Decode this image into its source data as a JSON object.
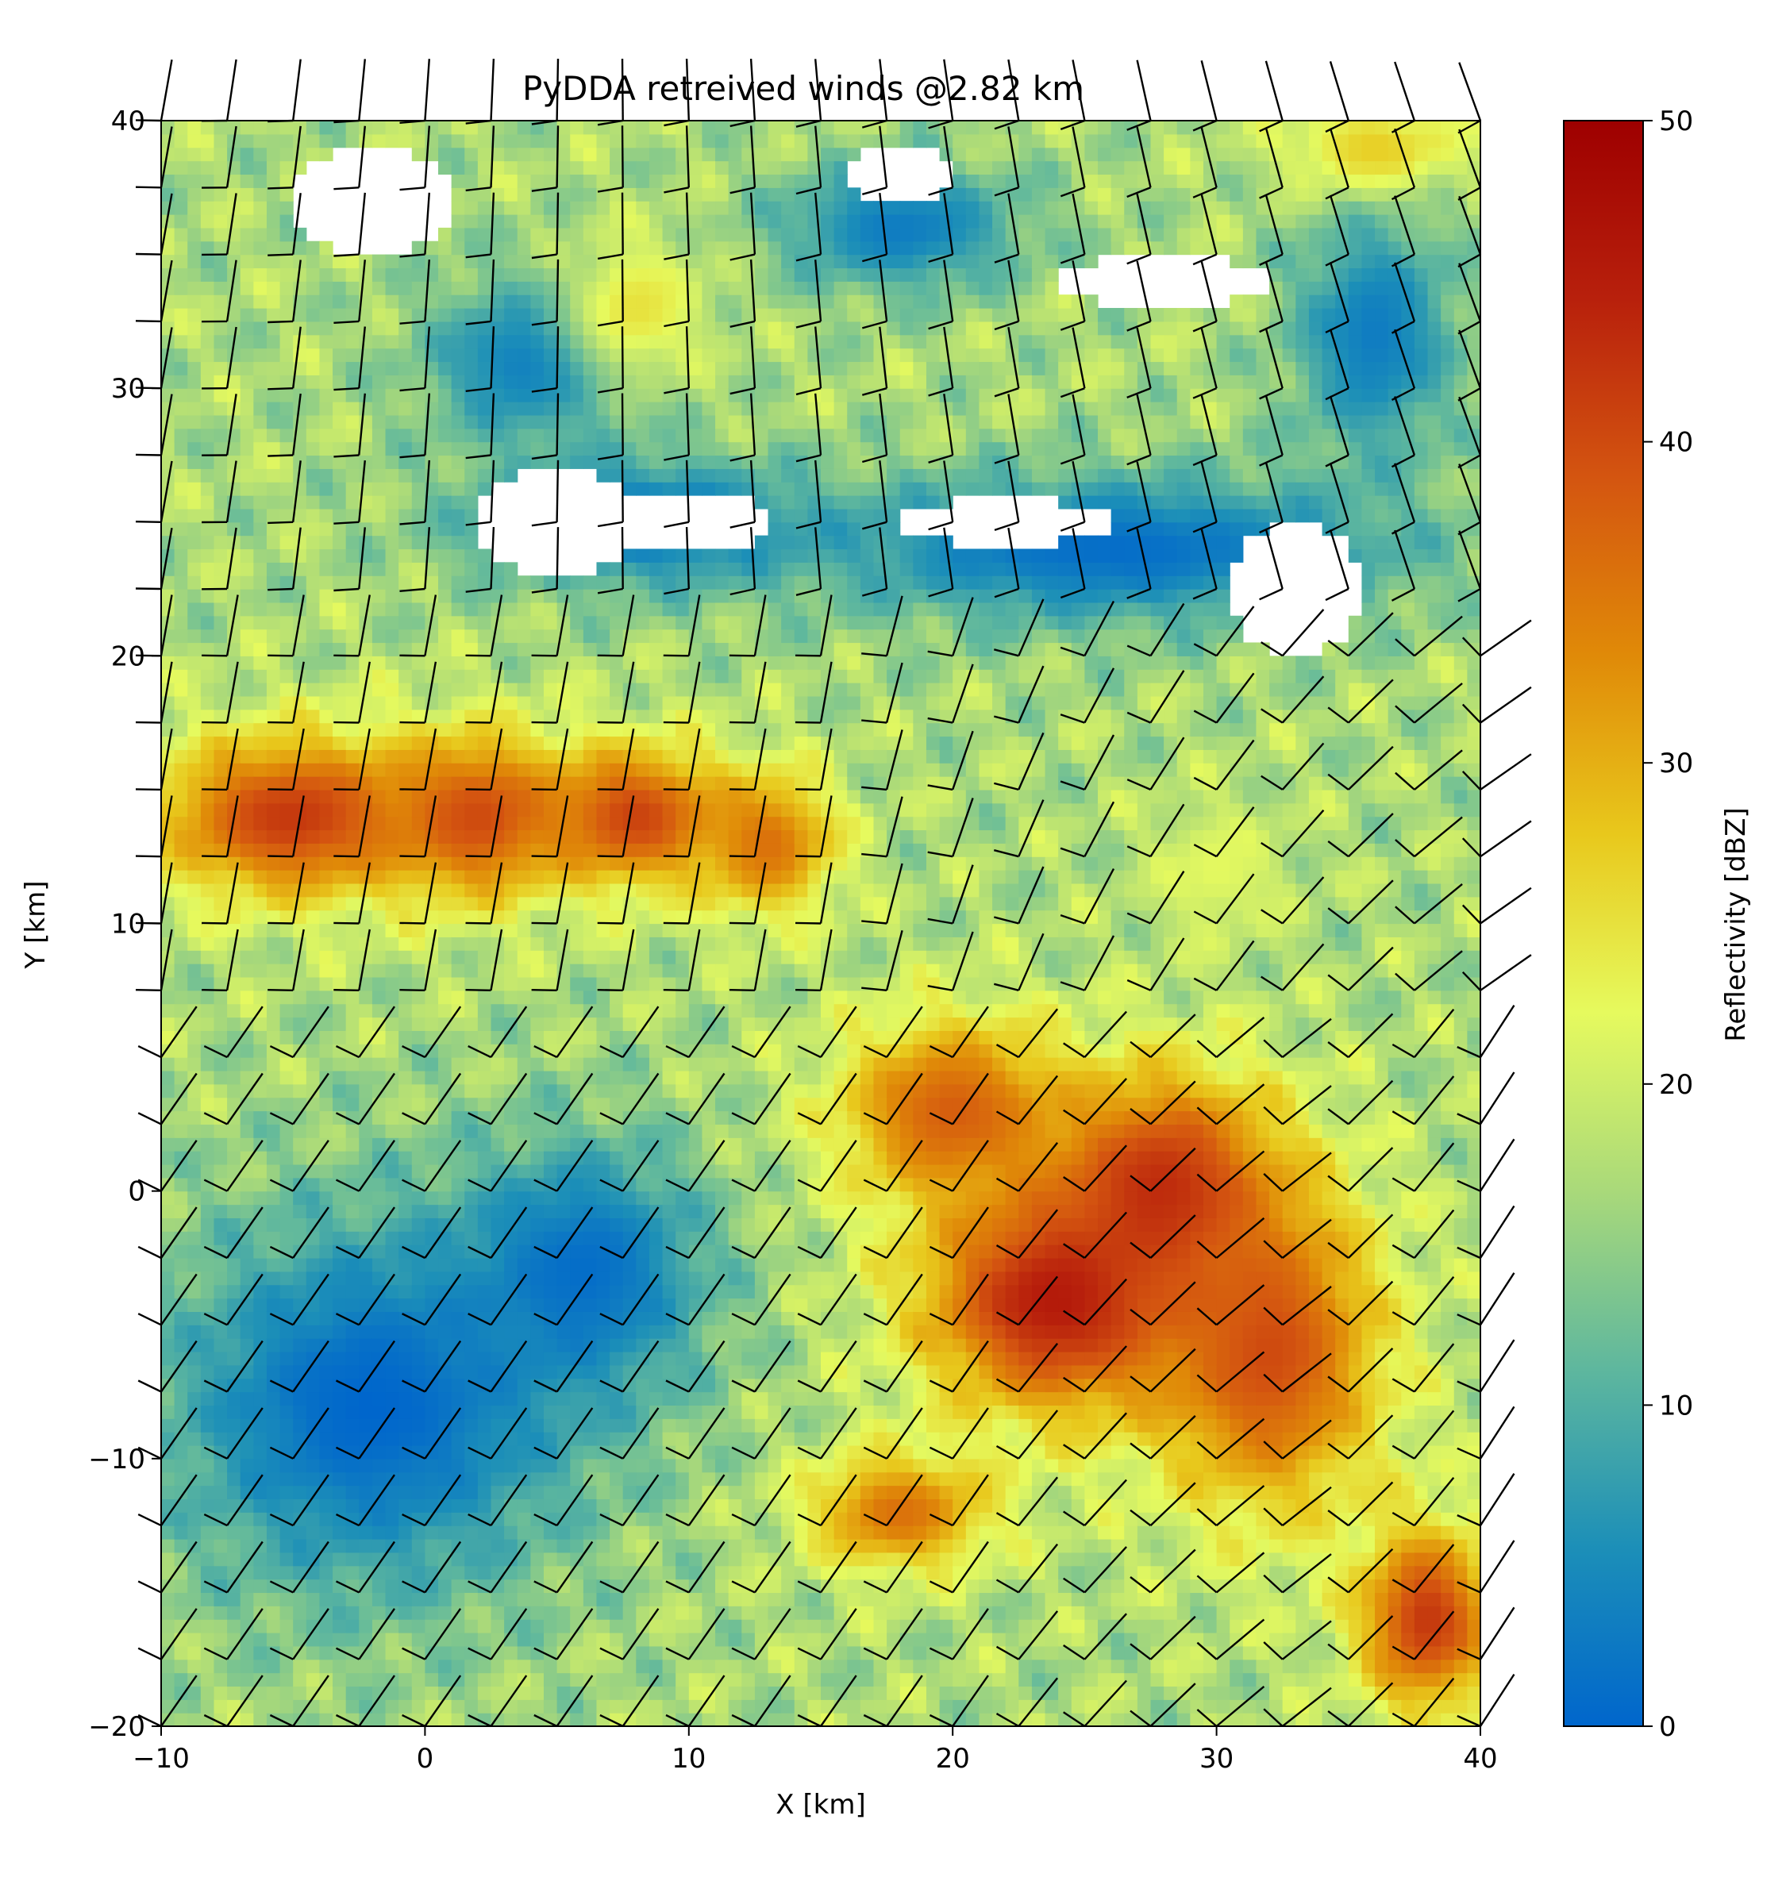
{
  "chart_data": {
    "type": "heatmap",
    "title": "PyDDA retreived winds @2.82 km",
    "xlabel": "X [km]",
    "ylabel": "Y [km]",
    "xlim": [
      -10,
      40
    ],
    "ylim": [
      -20,
      40
    ],
    "xticks": [
      -10,
      0,
      10,
      20,
      30,
      40
    ],
    "xtick_labels": [
      "−10",
      "0",
      "10",
      "20",
      "30",
      "40"
    ],
    "yticks": [
      -20,
      -10,
      0,
      10,
      20,
      30,
      40
    ],
    "ytick_labels": [
      "−20",
      "−10",
      "0",
      "10",
      "20",
      "30",
      "40"
    ],
    "colorbar": {
      "label": "Reflectivity [dBZ]",
      "range": [
        0,
        50
      ],
      "ticks": [
        0,
        10,
        20,
        30,
        40,
        50
      ],
      "tick_labels": [
        "0",
        "10",
        "20",
        "30",
        "40",
        "50"
      ],
      "colormap_stops": [
        "#0066cc",
        "#1c8fb8",
        "#5eb79e",
        "#a9d97a",
        "#e6fa5e",
        "#e8c81c",
        "#e08a08",
        "#d45510",
        "#b8200c",
        "#9e0000"
      ]
    },
    "grid_resolution_km": 1,
    "reflectivity_field": {
      "description_of_features": "",
      "regions": [
        {
          "kind": "blob",
          "x": -5,
          "y": 14,
          "rx": 6,
          "ry": 3.5,
          "dbz": 42
        },
        {
          "kind": "blob",
          "x": 2,
          "y": 14,
          "rx": 4,
          "ry": 3.5,
          "dbz": 40
        },
        {
          "kind": "blob",
          "x": 8,
          "y": 14,
          "rx": 4,
          "ry": 3,
          "dbz": 41
        },
        {
          "kind": "blob",
          "x": 13,
          "y": 13,
          "rx": 3,
          "ry": 3,
          "dbz": 36
        },
        {
          "kind": "blob",
          "x": 24,
          "y": -4,
          "rx": 6,
          "ry": 5,
          "dbz": 46
        },
        {
          "kind": "blob",
          "x": 28,
          "y": 0,
          "rx": 5,
          "ry": 5,
          "dbz": 44
        },
        {
          "kind": "blob",
          "x": 32,
          "y": -6,
          "rx": 5,
          "ry": 7,
          "dbz": 40
        },
        {
          "kind": "blob",
          "x": 20,
          "y": 3,
          "rx": 5,
          "ry": 4,
          "dbz": 38
        },
        {
          "kind": "blob",
          "x": 38,
          "y": -16,
          "rx": 3,
          "ry": 4,
          "dbz": 42
        },
        {
          "kind": "blob",
          "x": 18,
          "y": -12,
          "rx": 4,
          "ry": 2.5,
          "dbz": 36
        },
        {
          "kind": "blob",
          "x": 8,
          "y": 33,
          "rx": 3,
          "ry": 3,
          "dbz": 25
        },
        {
          "kind": "blob",
          "x": 36,
          "y": 39,
          "rx": 4,
          "ry": 2,
          "dbz": 27
        },
        {
          "kind": "blob",
          "x": 30,
          "y": 12,
          "rx": 3,
          "ry": 3,
          "dbz": 22
        }
      ],
      "low_regions": [
        {
          "x": -2,
          "y": -8,
          "rx": 10,
          "ry": 9,
          "dbz": 0
        },
        {
          "x": 6,
          "y": -3,
          "rx": 6,
          "ry": 6,
          "dbz": 1
        },
        {
          "x": 26,
          "y": 24,
          "rx": 14,
          "ry": 3.5,
          "dbz": 1
        },
        {
          "x": 8,
          "y": 25,
          "rx": 8,
          "ry": 3,
          "dbz": 1
        },
        {
          "x": 18,
          "y": 36,
          "rx": 6,
          "ry": 3,
          "dbz": 3
        },
        {
          "x": 36,
          "y": 32,
          "rx": 4,
          "ry": 6,
          "dbz": 3
        },
        {
          "x": 4,
          "y": 31,
          "rx": 5,
          "ry": 4,
          "dbz": 3
        }
      ],
      "missing_areas": [
        {
          "x": 5,
          "y": 25,
          "rx": 3,
          "ry": 2
        },
        {
          "x": 10,
          "y": 25,
          "rx": 3,
          "ry": 1.2
        },
        {
          "x": 22,
          "y": 25,
          "rx": 4,
          "ry": 0.9
        },
        {
          "x": 33,
          "y": 22.5,
          "rx": 2.5,
          "ry": 2.5
        },
        {
          "x": 28,
          "y": 34,
          "rx": 4,
          "ry": 1
        },
        {
          "x": -2,
          "y": 37,
          "rx": 3,
          "ry": 2
        },
        {
          "x": 18,
          "y": 38,
          "rx": 2,
          "ry": 1
        }
      ]
    },
    "wind_barbs_spacing_km": 2.5
  }
}
